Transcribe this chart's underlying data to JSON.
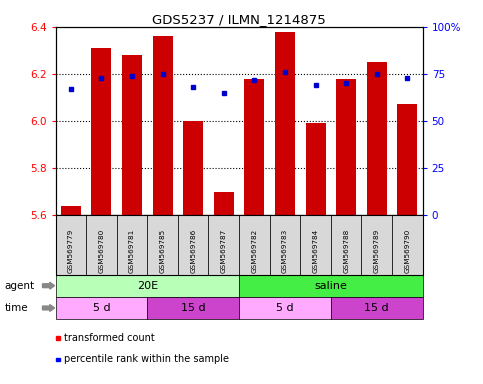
{
  "title": "GDS5237 / ILMN_1214875",
  "samples": [
    "GSM569779",
    "GSM569780",
    "GSM569781",
    "GSM569785",
    "GSM569786",
    "GSM569787",
    "GSM569782",
    "GSM569783",
    "GSM569784",
    "GSM569788",
    "GSM569789",
    "GSM569790"
  ],
  "red_values": [
    5.64,
    6.31,
    6.28,
    6.36,
    6.0,
    5.7,
    6.18,
    6.38,
    5.99,
    6.18,
    6.25,
    6.07
  ],
  "blue_values": [
    67,
    73,
    74,
    75,
    68,
    65,
    72,
    76,
    69,
    70,
    75,
    73
  ],
  "y_min": 5.6,
  "y_max": 6.4,
  "y_ticks_left": [
    5.6,
    5.8,
    6.0,
    6.2,
    6.4
  ],
  "y_ticks_right": [
    0,
    25,
    50,
    75,
    100
  ],
  "bar_color": "#cc0000",
  "dot_color": "#0000cc",
  "agent_20E_color": "#b8ffb8",
  "agent_saline_color": "#44ee44",
  "time_5d_color": "#ffaaff",
  "time_15d_color": "#cc44cc",
  "sample_bg_color": "#d8d8d8",
  "legend_red_label": "transformed count",
  "legend_blue_label": "percentile rank within the sample",
  "agent_label": "agent",
  "time_label": "time",
  "agent_groups": [
    {
      "label": "20E",
      "start": 0,
      "end": 5
    },
    {
      "label": "saline",
      "start": 6,
      "end": 11
    }
  ],
  "time_groups": [
    {
      "label": "5 d",
      "start": 0,
      "end": 2
    },
    {
      "label": "15 d",
      "start": 3,
      "end": 5
    },
    {
      "label": "5 d",
      "start": 6,
      "end": 8
    },
    {
      "label": "15 d",
      "start": 9,
      "end": 11
    }
  ]
}
